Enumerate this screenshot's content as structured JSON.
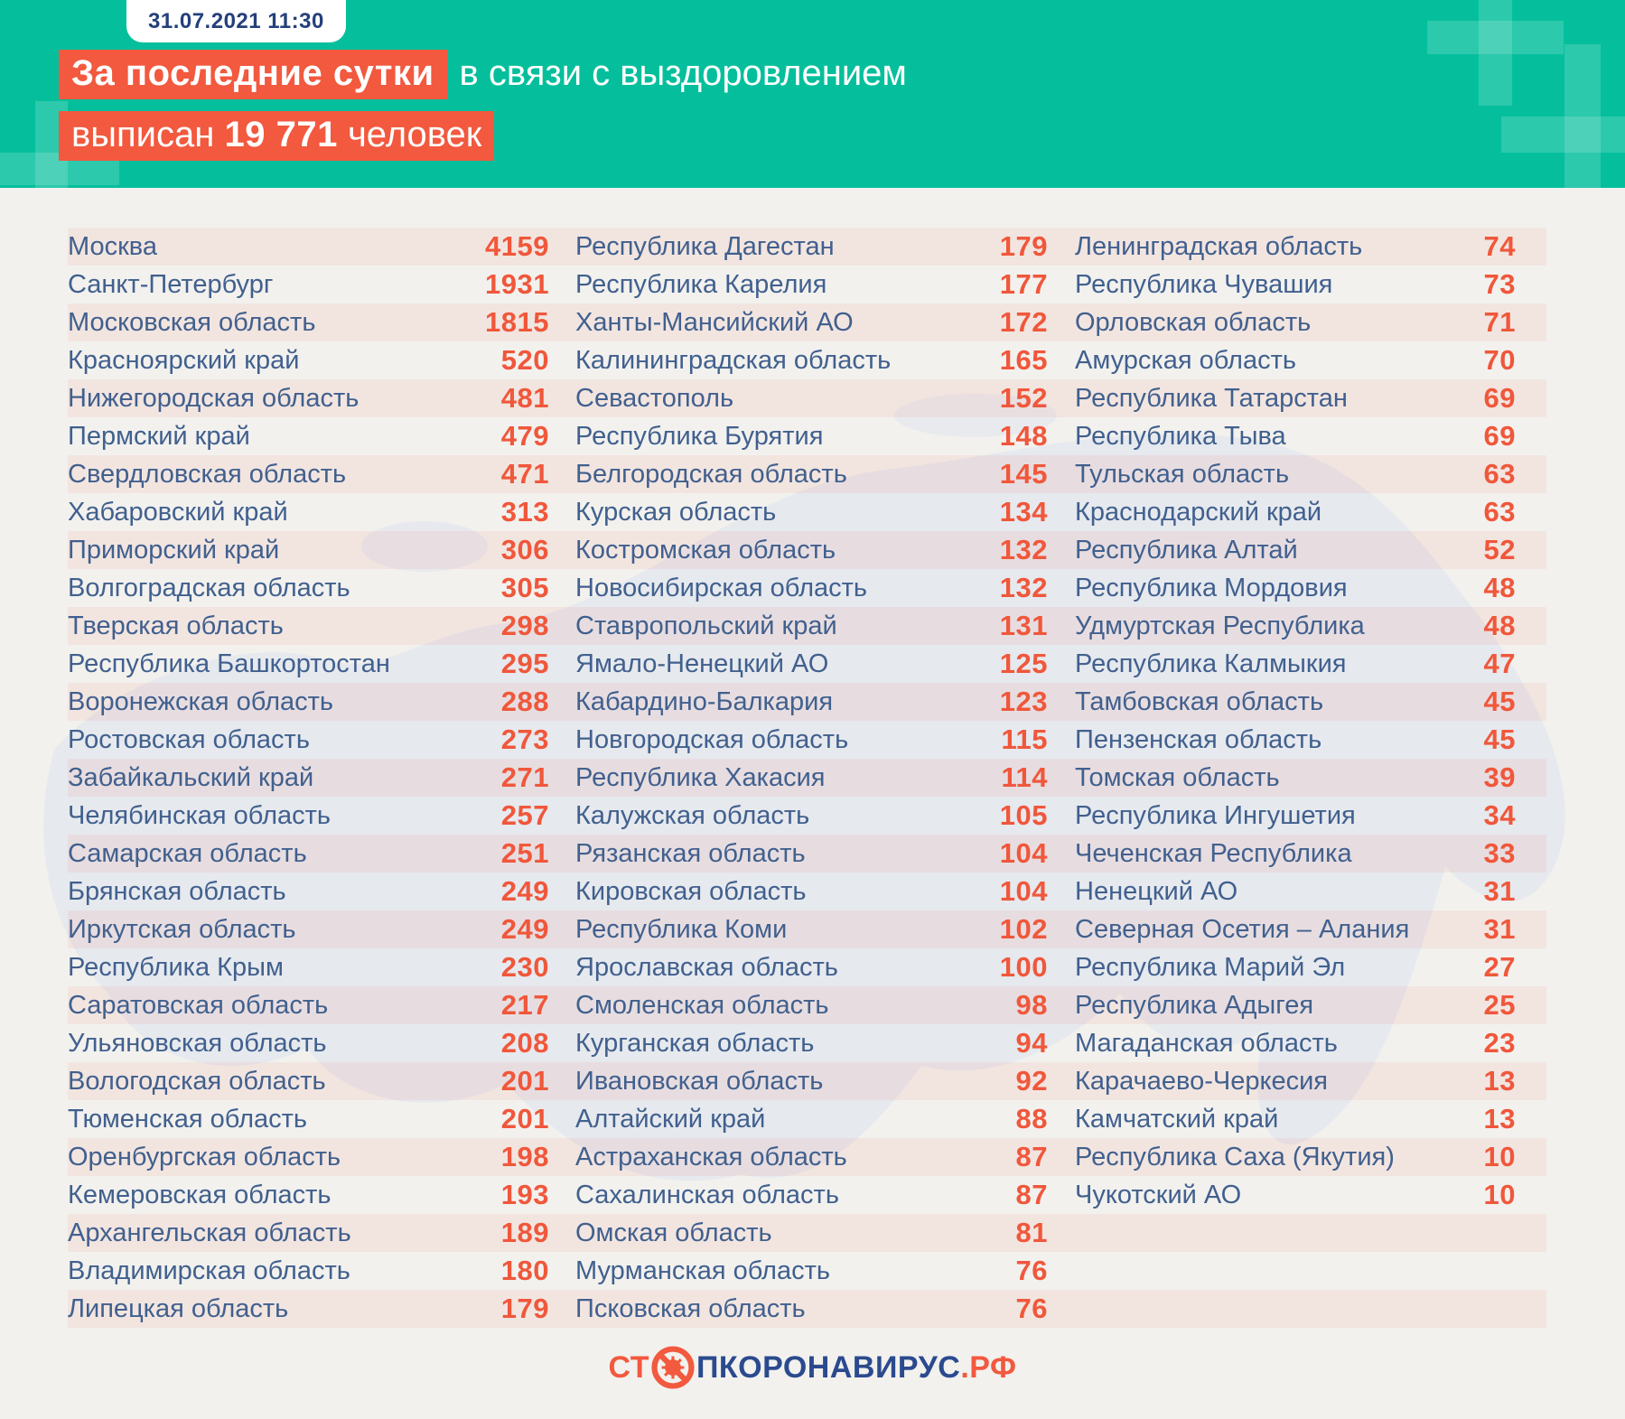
{
  "header": {
    "date_badge": "31.07.2021 11:30",
    "title_line1_highlight": "За последние сутки",
    "title_line1_rest": "в связи с выздоровлением",
    "title_line2_prefix": "выписан",
    "title_line2_number": "19 771",
    "title_line2_suffix": "человек"
  },
  "chart_data": {
    "type": "table",
    "title": "За последние сутки в связи с выздоровлением выписан 19 771 человек",
    "value_meaning": "выписано человек за сутки по регионам",
    "total": "19 771",
    "columns": [
      {
        "rows": [
          {
            "region": "Москва",
            "value": "4159"
          },
          {
            "region": "Санкт-Петербург",
            "value": "1931"
          },
          {
            "region": "Московская область",
            "value": "1815"
          },
          {
            "region": "Красноярский край",
            "value": "520"
          },
          {
            "region": "Нижегородская область",
            "value": "481"
          },
          {
            "region": "Пермский край",
            "value": "479"
          },
          {
            "region": "Свердловская область",
            "value": "471"
          },
          {
            "region": "Хабаровский край",
            "value": "313"
          },
          {
            "region": "Приморский край",
            "value": "306"
          },
          {
            "region": "Волгоградская область",
            "value": "305"
          },
          {
            "region": "Тверская область",
            "value": "298"
          },
          {
            "region": "Республика Башкортостан",
            "value": "295"
          },
          {
            "region": "Воронежская область",
            "value": "288"
          },
          {
            "region": "Ростовская область",
            "value": "273"
          },
          {
            "region": "Забайкальский край",
            "value": "271"
          },
          {
            "region": "Челябинская область",
            "value": "257"
          },
          {
            "region": "Самарская область",
            "value": "251"
          },
          {
            "region": "Брянская область",
            "value": "249"
          },
          {
            "region": "Иркутская область",
            "value": "249"
          },
          {
            "region": "Республика Крым",
            "value": "230"
          },
          {
            "region": "Саратовская область",
            "value": "217"
          },
          {
            "region": "Ульяновская область",
            "value": "208"
          },
          {
            "region": "Вологодская область",
            "value": "201"
          },
          {
            "region": "Тюменская область",
            "value": "201"
          },
          {
            "region": "Оренбургская область",
            "value": "198"
          },
          {
            "region": "Кемеровская область",
            "value": "193"
          },
          {
            "region": "Архангельская область",
            "value": "189"
          },
          {
            "region": "Владимирская область",
            "value": "180"
          },
          {
            "region": "Липецкая область",
            "value": "179"
          }
        ]
      },
      {
        "rows": [
          {
            "region": "Республика Дагестан",
            "value": "179"
          },
          {
            "region": "Республика Карелия",
            "value": "177"
          },
          {
            "region": "Ханты-Мансийский АО",
            "value": "172"
          },
          {
            "region": "Калининградская область",
            "value": "165"
          },
          {
            "region": "Севастополь",
            "value": "152"
          },
          {
            "region": "Республика Бурятия",
            "value": "148"
          },
          {
            "region": "Белгородская область",
            "value": "145"
          },
          {
            "region": "Курская область",
            "value": "134"
          },
          {
            "region": "Костромская область",
            "value": "132"
          },
          {
            "region": "Новосибирская область",
            "value": "132"
          },
          {
            "region": "Ставропольский край",
            "value": "131"
          },
          {
            "region": "Ямало-Ненецкий АО",
            "value": "125"
          },
          {
            "region": "Кабардино-Балкария",
            "value": "123"
          },
          {
            "region": "Новгородская область",
            "value": "115"
          },
          {
            "region": "Республика Хакасия",
            "value": "114"
          },
          {
            "region": "Калужская область",
            "value": "105"
          },
          {
            "region": "Рязанская область",
            "value": "104"
          },
          {
            "region": "Кировская область",
            "value": "104"
          },
          {
            "region": "Республика Коми",
            "value": "102"
          },
          {
            "region": "Ярославская область",
            "value": "100"
          },
          {
            "region": "Смоленская область",
            "value": "98"
          },
          {
            "region": "Курганская область",
            "value": "94"
          },
          {
            "region": "Ивановская область",
            "value": "92"
          },
          {
            "region": "Алтайский край",
            "value": "88"
          },
          {
            "region": "Астраханская область",
            "value": "87"
          },
          {
            "region": "Сахалинская область",
            "value": "87"
          },
          {
            "region": "Омская область",
            "value": "81"
          },
          {
            "region": "Мурманская область",
            "value": "76"
          },
          {
            "region": "Псковская область",
            "value": "76"
          }
        ]
      },
      {
        "rows": [
          {
            "region": "Ленинградская область",
            "value": "74"
          },
          {
            "region": "Республика Чувашия",
            "value": "73"
          },
          {
            "region": "Орловская область",
            "value": "71"
          },
          {
            "region": "Амурская область",
            "value": "70"
          },
          {
            "region": "Республика Татарстан",
            "value": "69"
          },
          {
            "region": "Республика Тыва",
            "value": "69"
          },
          {
            "region": "Тульская область",
            "value": "63"
          },
          {
            "region": "Краснодарский край",
            "value": "63"
          },
          {
            "region": "Республика Алтай",
            "value": "52"
          },
          {
            "region": "Республика Мордовия",
            "value": "48"
          },
          {
            "region": "Удмуртская Республика",
            "value": "48"
          },
          {
            "region": "Республика Калмыкия",
            "value": "47"
          },
          {
            "region": "Тамбовская область",
            "value": "45"
          },
          {
            "region": "Пензенская область",
            "value": "45"
          },
          {
            "region": "Томская область",
            "value": "39"
          },
          {
            "region": "Республика Ингушетия",
            "value": "34"
          },
          {
            "region": "Чеченская Республика",
            "value": "33"
          },
          {
            "region": "Ненецкий АО",
            "value": "31"
          },
          {
            "region": "Северная Осетия – Алания",
            "value": "31"
          },
          {
            "region": "Республика Марий Эл",
            "value": "27"
          },
          {
            "region": "Республика Адыгея",
            "value": "25"
          },
          {
            "region": "Магаданская область",
            "value": "23"
          },
          {
            "region": "Карачаево-Черкесия",
            "value": "13"
          },
          {
            "region": "Камчатский край",
            "value": "13"
          },
          {
            "region": "Республика Саха (Якутия)",
            "value": "10"
          },
          {
            "region": "Чукотский АО",
            "value": "10"
          }
        ]
      }
    ]
  },
  "footer": {
    "logo_prefix": "СТ",
    "logo_middle": "ПКОРОНАВИРУС",
    "logo_suffix": ".РФ"
  },
  "colors": {
    "teal_header": "#05bf9c",
    "accent_orange": "#f2593e",
    "number_orange": "#f0573b",
    "badge_navy": "#24407a",
    "region_text": "#41608e",
    "logo_navy": "#2b4a8e",
    "background": "#f2f1ee",
    "stripe": "rgba(242,95,60,0.08)",
    "map_fill": "#dce1ee"
  }
}
